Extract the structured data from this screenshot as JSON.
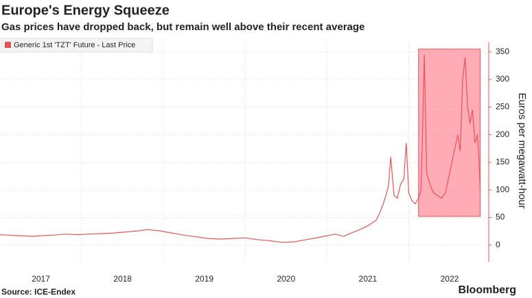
{
  "chart_data": {
    "type": "line",
    "title": "Europe's Energy Squeeze",
    "subtitle": "Gas prices have dropped back, but remain well above their recent average",
    "source": "Source: ICE-Endex",
    "brand": "Bloomberg",
    "y_label": "Euros per megawatt-hour",
    "series": [
      {
        "name": "Generic 1st 'TZT' Future - Last Price",
        "color": "#e8525a",
        "x": [
          2017.0,
          2017.1,
          2017.25,
          2017.4,
          2017.5,
          2017.65,
          2017.8,
          2017.95,
          2018.1,
          2018.25,
          2018.4,
          2018.55,
          2018.7,
          2018.8,
          2018.95,
          2019.1,
          2019.25,
          2019.4,
          2019.55,
          2019.7,
          2019.85,
          2020.0,
          2020.15,
          2020.3,
          2020.45,
          2020.6,
          2020.75,
          2020.9,
          2021.0,
          2021.1,
          2021.2,
          2021.3,
          2021.4,
          2021.5,
          2021.6,
          2021.65,
          2021.7,
          2021.75,
          2021.78,
          2021.82,
          2021.86,
          2021.9,
          2021.94,
          2021.97,
          2022.0,
          2022.04,
          2022.08,
          2022.12,
          2022.15,
          2022.17,
          2022.19,
          2022.22,
          2022.26,
          2022.3,
          2022.35,
          2022.4,
          2022.45,
          2022.5,
          2022.55,
          2022.6,
          2022.63,
          2022.66,
          2022.69,
          2022.72,
          2022.75,
          2022.78,
          2022.81,
          2022.84,
          2022.86,
          2022.875
        ],
        "values": [
          19,
          18,
          17,
          16,
          17,
          18,
          20,
          19,
          20,
          21,
          22,
          24,
          26,
          28,
          26,
          22,
          18,
          15,
          12,
          11,
          12,
          13,
          10,
          8,
          5,
          6,
          10,
          14,
          17,
          20,
          16,
          22,
          28,
          35,
          45,
          60,
          80,
          105,
          160,
          90,
          85,
          110,
          120,
          185,
          95,
          80,
          75,
          85,
          100,
          210,
          345,
          130,
          110,
          95,
          90,
          85,
          95,
          130,
          165,
          200,
          170,
          300,
          340,
          250,
          220,
          245,
          185,
          200,
          150,
          100
        ]
      }
    ],
    "highlight": {
      "x": [
        2022.12,
        2022.875
      ],
      "y": [
        52,
        355
      ]
    },
    "xlim": [
      2017.0,
      2022.92
    ],
    "xticks": [
      {
        "value": 2017.5,
        "label": "2017"
      },
      {
        "value": 2018.5,
        "label": "2018"
      },
      {
        "value": 2019.5,
        "label": "2019"
      },
      {
        "value": 2020.5,
        "label": "2020"
      },
      {
        "value": 2021.5,
        "label": "2021"
      },
      {
        "value": 2022.5,
        "label": "2022"
      }
    ],
    "xgrid": [
      2018,
      2019,
      2020,
      2021,
      2022
    ],
    "ylim": [
      -30,
      367
    ],
    "yticks": [
      0,
      50,
      100,
      150,
      200,
      250,
      300,
      350
    ],
    "grid": true
  }
}
